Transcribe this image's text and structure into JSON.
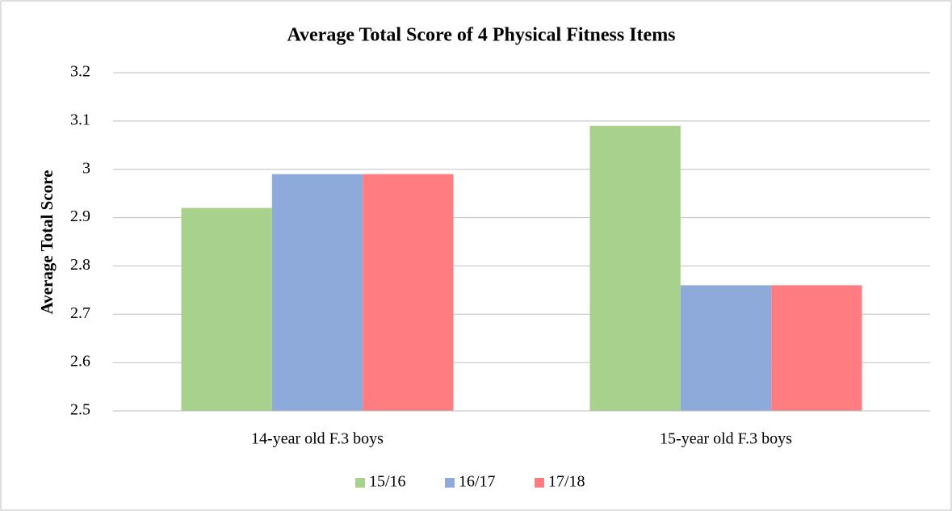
{
  "chart_data": {
    "type": "bar",
    "title": "Average Total Score of 4 Physical Fitness Items",
    "y_label": "Average Total Score",
    "categories": [
      "14-year old F.3 boys",
      "15-year old F.3 boys"
    ],
    "series": [
      {
        "name": "15/16",
        "color": "#a9d18e",
        "values": [
          2.92,
          3.09
        ]
      },
      {
        "name": "16/17",
        "color": "#8eaadb",
        "values": [
          2.99,
          2.76
        ]
      },
      {
        "name": "17/18",
        "color": "#ff7c80",
        "values": [
          2.99,
          2.76
        ]
      }
    ],
    "ylim": [
      2.5,
      3.2
    ],
    "yticks": [
      2.5,
      2.6,
      2.7,
      2.8,
      2.9,
      3,
      3.1,
      3.2
    ],
    "grid": true,
    "legend": "bottom"
  }
}
